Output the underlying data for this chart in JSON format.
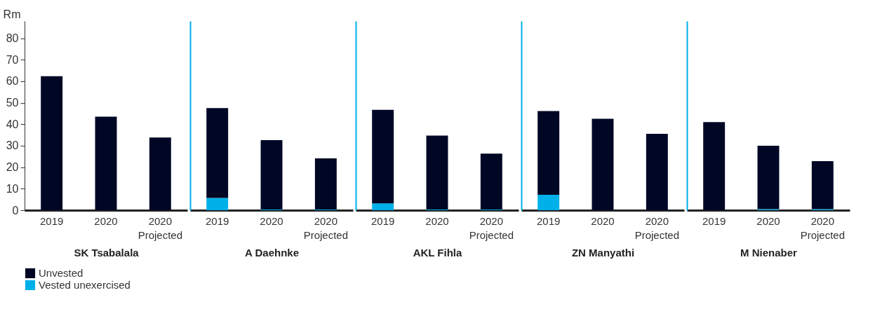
{
  "chart_data": [
    {
      "type": "bar",
      "stacked": true,
      "xlabel": "SK Tsabalala",
      "ylabel": "Rm",
      "categories": [
        "2019",
        "2020",
        "2020 Projected"
      ],
      "ylim": [
        0,
        88
      ],
      "yticks": [
        0,
        10,
        20,
        30,
        40,
        50,
        60,
        70,
        80
      ],
      "legend": "bottom left",
      "series": [
        {
          "name": "Vested unexercised",
          "color": "#00b0e8",
          "values": [
            0,
            0,
            0
          ]
        },
        {
          "name": "Unvested",
          "color": "#000725",
          "values": [
            62.3,
            43.5,
            33.8
          ]
        }
      ]
    },
    {
      "type": "bar",
      "stacked": true,
      "xlabel": "A Daehnke",
      "categories": [
        "2019",
        "2020",
        "2020 Projected"
      ],
      "ylim": [
        0,
        88
      ],
      "yticks": [
        0,
        10,
        20,
        30,
        40,
        50,
        60,
        70,
        80
      ],
      "tick_labels": "x",
      "series": [
        {
          "color": "#00b0e8",
          "values": [
            5.7,
            0.3,
            0.3
          ]
        },
        {
          "color": "#000725",
          "values": [
            41.8,
            32.3,
            23.8
          ]
        }
      ]
    },
    {
      "type": "bar",
      "stacked": true,
      "xlabel": "AKL Fihla",
      "categories": [
        "2019",
        "2020",
        "2020 Projected"
      ],
      "ylim": [
        0,
        88
      ],
      "yticks": [
        0,
        10,
        20,
        30,
        40,
        50,
        60,
        70,
        80
      ],
      "tick_labels": "x",
      "series": [
        {
          "color": "#00b0e8",
          "values": [
            3.2,
            0.3,
            0.3
          ]
        },
        {
          "color": "#000725",
          "values": [
            43.5,
            34.4,
            26.0
          ]
        }
      ]
    },
    {
      "type": "bar",
      "stacked": true,
      "xlabel": "ZN Manyathi",
      "categories": [
        "2019",
        "2020",
        "2020 Projected"
      ],
      "ylim": [
        0,
        88
      ],
      "yticks": [
        0,
        10,
        20,
        30,
        40,
        50,
        60,
        70,
        80
      ],
      "tick_labels": "x",
      "series": [
        {
          "color": "#00b0e8",
          "values": [
            7.2,
            0,
            0
          ]
        },
        {
          "color": "#000725",
          "values": [
            38.9,
            42.5,
            35.5
          ]
        }
      ]
    },
    {
      "type": "bar",
      "stacked": true,
      "xlabel": "M Nienaber",
      "categories": [
        "2019",
        "2020",
        "2020 Projected"
      ],
      "ylim": [
        0,
        88
      ],
      "yticks": [
        0,
        10,
        20,
        30,
        40,
        50,
        60,
        70,
        80
      ],
      "tick_labels": "x",
      "series": [
        {
          "color": "#00b0e8",
          "values": [
            0,
            0.5,
            0.5
          ]
        },
        {
          "color": "#000725",
          "values": [
            41.0,
            29.5,
            22.3
          ]
        }
      ]
    }
  ]
}
